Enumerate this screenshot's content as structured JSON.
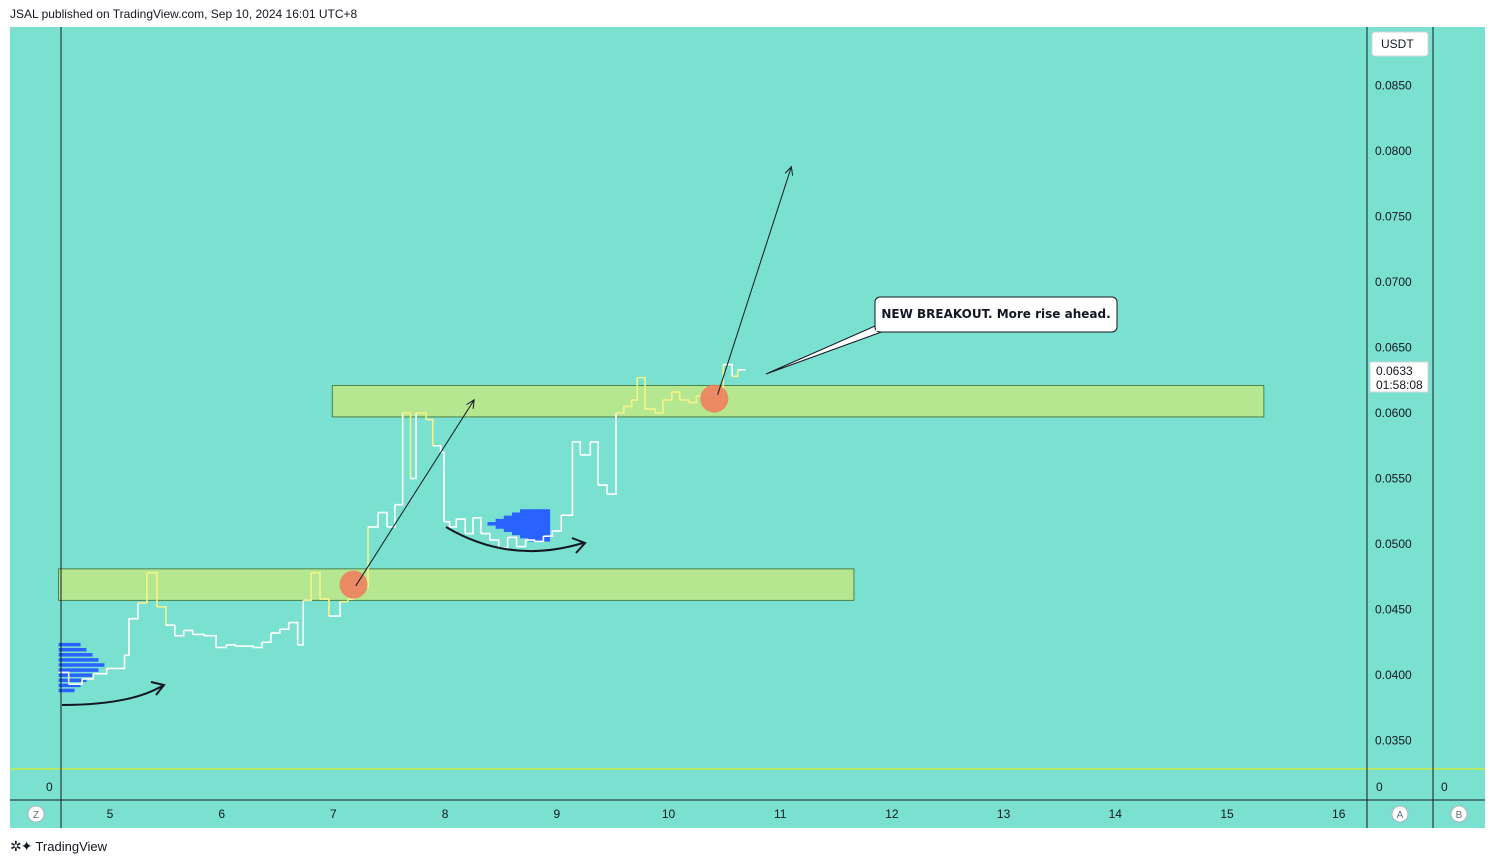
{
  "header": {
    "text": "JSAL published on TradingView.com, Sep 10, 2024 16:01 UTC+8"
  },
  "brand": {
    "logo": "✲✦",
    "name": "TradingView"
  },
  "colors": {
    "background": "#7ae0d0",
    "zone": "#b5e690",
    "zone_border": "#3d6b2e",
    "price_line_white": "#ffffff",
    "price_line_yellow": "#f4f48a",
    "volume_blue": "#2962ff",
    "marker": "#f08060",
    "zero_line": "#f0f000"
  },
  "price_axis": {
    "currency": "USDT",
    "current_price": "0.0633",
    "countdown": "01:58:08"
  },
  "panes": {
    "left_zero": "0",
    "right_zero_a": "0",
    "right_zero_b": "0"
  },
  "scale_buttons": {
    "z": "Z",
    "a": "A",
    "b": "B"
  },
  "annotation": {
    "text": "NEW BREAKOUT. More rise ahead."
  },
  "chart_data": {
    "type": "line",
    "title": "",
    "xlabel": "",
    "ylabel": "",
    "x_ticks": [
      "5",
      "6",
      "7",
      "8",
      "9",
      "10",
      "11",
      "12",
      "13",
      "14",
      "15",
      "16"
    ],
    "y_ticks": [
      "0.0850",
      "0.0800",
      "0.0750",
      "0.0700",
      "0.0650",
      "0.0600",
      "0.0550",
      "0.0500",
      "0.0450",
      "0.0400",
      "0.0350"
    ],
    "xlim": [
      4.54,
      16.04
    ],
    "ylim": [
      0.032,
      0.0875
    ],
    "grid": false,
    "series": [
      {
        "style": "step",
        "points": [
          [
            4.54,
            0.0402
          ],
          [
            4.63,
            0.0393
          ],
          [
            4.75,
            0.0397
          ],
          [
            4.85,
            0.0401
          ],
          [
            4.97,
            0.0405
          ],
          [
            5.13,
            0.0415
          ],
          [
            5.17,
            0.0443
          ],
          [
            5.25,
            0.0455
          ],
          [
            5.33,
            0.0478
          ],
          [
            5.42,
            0.0452
          ],
          [
            5.5,
            0.0438
          ],
          [
            5.58,
            0.043
          ],
          [
            5.66,
            0.0434
          ],
          [
            5.74,
            0.0431
          ],
          [
            5.84,
            0.043
          ],
          [
            5.95,
            0.0421
          ],
          [
            6.04,
            0.0423
          ],
          [
            6.12,
            0.0422
          ],
          [
            6.2,
            0.0422
          ],
          [
            6.28,
            0.0421
          ],
          [
            6.36,
            0.0425
          ],
          [
            6.44,
            0.0432
          ],
          [
            6.52,
            0.0435
          ],
          [
            6.6,
            0.044
          ],
          [
            6.68,
            0.0423
          ],
          [
            6.73,
            0.0457
          ],
          [
            6.8,
            0.0478
          ],
          [
            6.88,
            0.0458
          ],
          [
            6.96,
            0.0445
          ],
          [
            7.06,
            0.0456
          ],
          [
            7.13,
            0.0458
          ],
          [
            7.18,
            0.0467
          ],
          [
            7.31,
            0.0513
          ],
          [
            7.4,
            0.0524
          ],
          [
            7.48,
            0.0513
          ],
          [
            7.55,
            0.053
          ],
          [
            7.62,
            0.06
          ],
          [
            7.69,
            0.055
          ],
          [
            7.74,
            0.06
          ],
          [
            7.83,
            0.0595
          ],
          [
            7.89,
            0.0575
          ],
          [
            7.96,
            0.057
          ],
          [
            7.99,
            0.0517
          ],
          [
            8.04,
            0.0513
          ],
          [
            8.1,
            0.0519
          ],
          [
            8.18,
            0.0508
          ],
          [
            8.25,
            0.052
          ],
          [
            8.32,
            0.0508
          ],
          [
            8.4,
            0.0503
          ],
          [
            8.48,
            0.0497
          ],
          [
            8.56,
            0.0505
          ],
          [
            8.64,
            0.0498
          ],
          [
            8.72,
            0.0503
          ],
          [
            8.8,
            0.0502
          ],
          [
            8.88,
            0.0506
          ],
          [
            8.96,
            0.051
          ],
          [
            9.04,
            0.0522
          ],
          [
            9.14,
            0.0578
          ],
          [
            9.21,
            0.0568
          ],
          [
            9.3,
            0.0578
          ],
          [
            9.37,
            0.0545
          ],
          [
            9.45,
            0.0538
          ],
          [
            9.53,
            0.06
          ],
          [
            9.6,
            0.0605
          ],
          [
            9.67,
            0.061
          ],
          [
            9.72,
            0.0627
          ],
          [
            9.79,
            0.0603
          ],
          [
            9.88,
            0.06
          ],
          [
            9.95,
            0.061
          ],
          [
            10.03,
            0.0616
          ],
          [
            10.1,
            0.061
          ],
          [
            10.18,
            0.0608
          ],
          [
            10.25,
            0.0613
          ],
          [
            10.33,
            0.0616
          ],
          [
            10.43,
            0.0606
          ],
          [
            10.49,
            0.0637
          ],
          [
            10.57,
            0.0628
          ],
          [
            10.62,
            0.0633
          ],
          [
            10.69,
            0.0633
          ]
        ]
      }
    ],
    "zones": [
      {
        "from_x": 6.99,
        "to_x": 15.33,
        "y_low": 0.0597,
        "y_high": 0.0621
      },
      {
        "from_x": 4.54,
        "to_x": 11.66,
        "y_low": 0.0457,
        "y_high": 0.0481
      }
    ],
    "markers": [
      {
        "x": 7.18,
        "y": 0.0469
      },
      {
        "x": 10.41,
        "y": 0.0611
      }
    ],
    "arrows": [
      {
        "from": [
          7.2,
          0.0468
        ],
        "to": [
          8.26,
          0.061
        ]
      },
      {
        "from": [
          10.44,
          0.0614
        ],
        "to": [
          11.1,
          0.0788
        ]
      }
    ],
    "volume_profiles": [
      {
        "y_from": 0.0388,
        "y_to": 0.0423,
        "x_start": 4.54,
        "max_x": 4.95
      },
      {
        "y_from": 0.0503,
        "y_to": 0.0525,
        "x_start": 8.94,
        "max_x": 8.38
      }
    ]
  }
}
